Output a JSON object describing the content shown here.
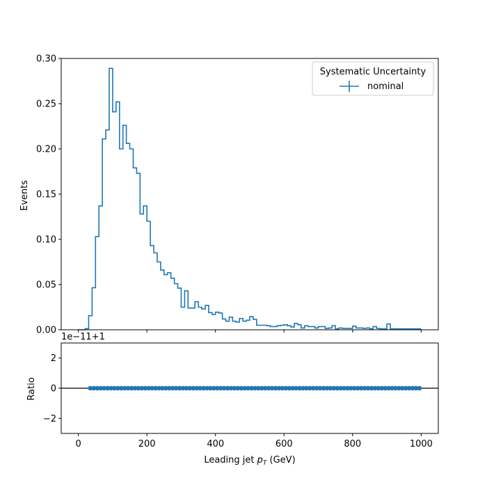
{
  "chart_data": {
    "type": "histogram-ratio",
    "colors": {
      "series": "#1f77b4",
      "reference_line": "#000000"
    },
    "main": {
      "ylabel": "Events",
      "ylim": [
        0,
        0.3
      ],
      "yticks": [
        0.0,
        0.05,
        0.1,
        0.15,
        0.2,
        0.25,
        0.3
      ],
      "ytick_labels": [
        "0.00",
        "0.05",
        "0.10",
        "0.15",
        "0.20",
        "0.25",
        "0.30"
      ],
      "legend": {
        "title": "Systematic Uncertainty",
        "placement": "top-right",
        "entries": [
          "nominal"
        ]
      },
      "bin_width": 10,
      "series": [
        {
          "name": "nominal",
          "x_start": 0,
          "values": [
            0,
            0,
            0.0012,
            0.0155,
            0.0465,
            0.103,
            0.137,
            0.211,
            0.221,
            0.289,
            0.241,
            0.252,
            0.2,
            0.226,
            0.206,
            0.2,
            0.179,
            0.173,
            0.128,
            0.137,
            0.12,
            0.093,
            0.085,
            0.075,
            0.066,
            0.061,
            0.063,
            0.057,
            0.051,
            0.046,
            0.025,
            0.043,
            0.024,
            0.024,
            0.031,
            0.025,
            0.023,
            0.027,
            0.019,
            0.017,
            0.0195,
            0.0185,
            0.012,
            0.0095,
            0.014,
            0.0095,
            0.0085,
            0.0125,
            0.0095,
            0.0105,
            0.0145,
            0.0115,
            0.005,
            0.005,
            0.005,
            0.0045,
            0.0035,
            0.0035,
            0.0045,
            0.005,
            0.0055,
            0.0045,
            0.003,
            0.007,
            0.0055,
            0.002,
            0.0045,
            0.0035,
            0.0035,
            0.002,
            0.0035,
            0.0035,
            0.0015,
            0.002,
            0.0045,
            0.001,
            0.002,
            0.0015,
            0.0015,
            0.0015,
            0.004,
            0.002,
            0.002,
            0.0015,
            0.002,
            0.001,
            0.0035,
            0.0015,
            0.001,
            0.001,
            0.0065,
            0.001,
            0.001,
            0.001,
            0.001,
            0.001,
            0.001,
            0.001,
            0.001,
            0.001
          ]
        }
      ]
    },
    "ratio": {
      "ylabel": "Ratio",
      "offset_text": "1e−11+1",
      "ylim": [
        -3,
        3
      ],
      "yticks": [
        -2,
        0,
        2
      ],
      "ytick_labels": [
        "−2",
        "0",
        "2"
      ],
      "reference_value": 0,
      "points": {
        "x_start": 35,
        "x_end": 995,
        "step": 10,
        "y": 0
      }
    },
    "x": {
      "label": "Leading jet  p_T (GeV)",
      "label_prefix": "Leading jet  ",
      "label_symbol": "p",
      "label_subscript": "T",
      "label_suffix": " (GeV)",
      "xlim": [
        -50,
        1050
      ],
      "ticks": [
        0,
        200,
        400,
        600,
        800,
        1000
      ],
      "tick_labels": [
        "0",
        "200",
        "400",
        "600",
        "800",
        "1000"
      ]
    }
  }
}
